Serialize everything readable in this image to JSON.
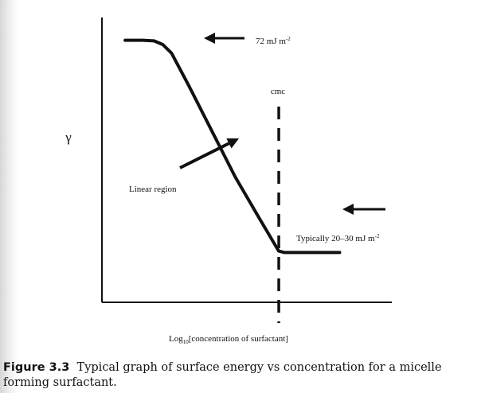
{
  "chart_data": {
    "type": "line",
    "title": "",
    "ylabel": "γ",
    "xlabel_main": "Log",
    "xlabel_sub": "10",
    "xlabel_rest": "[concentration of surfactant]",
    "xlim": [
      0,
      10
    ],
    "ylim": [
      0,
      10
    ],
    "grid": false,
    "series": [
      {
        "x": [
          0.8,
          1.4,
          1.8,
          2.1,
          2.4,
          3.0,
          3.8,
          4.6,
          5.4,
          6.1,
          6.3,
          7.0,
          7.8,
          8.2
        ],
        "y": [
          9.2,
          9.2,
          9.18,
          9.05,
          8.75,
          7.6,
          6.0,
          4.4,
          3.0,
          1.8,
          1.75,
          1.75,
          1.75,
          1.75
        ]
      }
    ],
    "cmc_x": 6.1,
    "cmc_label": "cmc",
    "annotations": [
      {
        "text": "72 mJ m",
        "sup": "-2"
      },
      {
        "text": "Typically 20–30 mJ m",
        "sup": "-2"
      },
      {
        "text": "Linear region"
      }
    ]
  },
  "caption": {
    "label": "Figure 3.3",
    "text": "Typical graph of surface energy vs concentration for a micelle forming surfactant."
  }
}
